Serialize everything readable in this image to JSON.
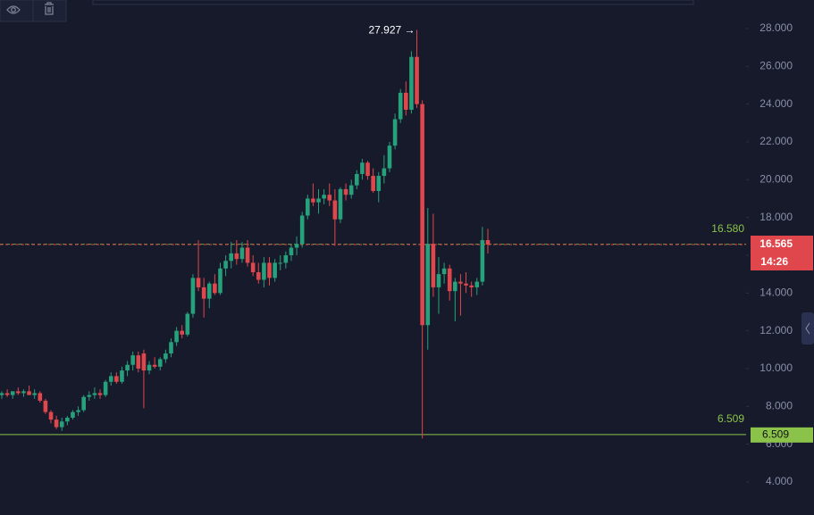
{
  "chart_data": {
    "type": "candlestick",
    "ylim": [
      2.25,
      29.51
    ],
    "yticks": [
      {
        "value": 4,
        "label": "4.000"
      },
      {
        "value": 6,
        "label": "6.000"
      },
      {
        "value": 8,
        "label": "8.000"
      },
      {
        "value": 10,
        "label": "10.000"
      },
      {
        "value": 12,
        "label": "12.000"
      },
      {
        "value": 14,
        "label": "14.000"
      },
      {
        "value": 16,
        "label": "16.000"
      },
      {
        "value": 18,
        "label": "18.000"
      },
      {
        "value": 20,
        "label": "20.000"
      },
      {
        "value": 22,
        "label": "22.000"
      },
      {
        "value": 24,
        "label": "24.000"
      },
      {
        "value": 26,
        "label": "26.000"
      },
      {
        "value": 28,
        "label": "28.000"
      }
    ],
    "up_color": "#26a17b",
    "down_color": "#e0474c",
    "open": [
      8.6,
      8.7,
      8.6,
      8.8,
      8.7,
      8.8,
      8.6,
      8.7,
      8.3,
      7.7,
      7.3,
      6.9,
      7.2,
      7.4,
      7.7,
      7.8,
      8.5,
      8.6,
      8.7,
      8.6,
      9.3,
      9.6,
      9.3,
      9.9,
      10.2,
      10.7,
      10.8,
      9.9,
      10.2,
      10.1,
      10.5,
      10.8,
      11.4,
      12.0,
      11.8,
      12.9,
      14.8,
      14.3,
      13.7,
      14.5,
      14.0,
      15.3,
      15.7,
      16.1,
      15.8,
      16.4,
      15.6,
      15.1,
      14.7,
      15.6,
      14.8,
      15.6,
      15.6,
      16.0,
      16.4,
      16.6,
      18.1,
      19.0,
      18.8,
      19.0,
      19.2,
      18.9,
      17.9,
      19.5,
      19.2,
      19.7,
      20.3,
      20.9,
      20.2,
      19.4,
      20.2,
      20.6,
      21.8,
      23.2,
      24.6,
      23.7,
      26.5,
      24.0,
      12.3,
      16.6,
      14.3,
      15.0,
      15.3,
      14.1,
      14.6,
      14.5,
      14.4,
      14.3,
      14.6,
      16.8
    ],
    "high": [
      8.8,
      8.9,
      8.8,
      9.0,
      8.9,
      9.1,
      8.9,
      8.8,
      8.4,
      7.8,
      7.5,
      7.4,
      7.5,
      7.8,
      8.0,
      8.6,
      8.8,
      9.0,
      8.9,
      9.4,
      9.8,
      9.8,
      10.1,
      10.4,
      10.9,
      10.9,
      11.0,
      10.4,
      10.6,
      10.6,
      11.0,
      11.6,
      12.2,
      12.3,
      13.0,
      15.0,
      16.8,
      14.8,
      14.6,
      15.0,
      15.6,
      16.0,
      16.7,
      16.8,
      16.7,
      16.8,
      16.0,
      15.6,
      15.9,
      15.9,
      15.8,
      16.0,
      16.2,
      16.6,
      17.0,
      18.3,
      19.2,
      19.8,
      19.5,
      19.5,
      19.8,
      19.5,
      19.6,
      19.8,
      20.0,
      20.5,
      21.1,
      21.0,
      20.6,
      20.4,
      21.3,
      22.0,
      23.5,
      24.8,
      25.2,
      26.8,
      27.927,
      24.2,
      18.5,
      18.2,
      15.9,
      15.6,
      15.5,
      14.8,
      15.0,
      15.1,
      14.6,
      14.8,
      17.5,
      17.4
    ],
    "low": [
      8.4,
      8.5,
      8.4,
      8.6,
      8.5,
      8.6,
      8.4,
      8.2,
      7.6,
      7.1,
      6.8,
      6.7,
      7.0,
      7.3,
      7.5,
      7.7,
      8.3,
      8.4,
      8.4,
      8.5,
      9.1,
      9.2,
      9.2,
      9.6,
      9.9,
      9.8,
      7.9,
      9.7,
      10.0,
      9.9,
      10.3,
      10.6,
      11.2,
      11.6,
      11.7,
      12.7,
      14.1,
      12.7,
      13.2,
      13.9,
      13.9,
      14.9,
      15.3,
      15.5,
      15.6,
      15.4,
      14.9,
      14.5,
      14.3,
      14.4,
      14.6,
      15.2,
      15.3,
      15.7,
      16.0,
      16.4,
      17.9,
      18.6,
      18.2,
      18.7,
      18.6,
      16.5,
      17.7,
      18.9,
      19.0,
      19.5,
      20.0,
      20.0,
      19.3,
      18.8,
      19.8,
      20.4,
      21.6,
      23.0,
      23.4,
      23.5,
      23.8,
      6.3,
      11.0,
      13.8,
      12.9,
      14.5,
      13.6,
      12.5,
      12.8,
      14.0,
      13.8,
      13.9,
      14.4,
      16.1
    ],
    "close": [
      8.7,
      8.6,
      8.8,
      8.7,
      8.8,
      8.6,
      8.7,
      8.3,
      7.7,
      7.3,
      6.9,
      7.2,
      7.4,
      7.7,
      7.8,
      8.5,
      8.6,
      8.7,
      8.6,
      9.3,
      9.6,
      9.3,
      9.9,
      10.2,
      10.7,
      10.0,
      9.9,
      10.2,
      10.1,
      10.5,
      10.8,
      11.4,
      12.0,
      11.8,
      12.9,
      14.8,
      14.3,
      13.7,
      14.5,
      14.0,
      15.3,
      15.7,
      16.1,
      15.8,
      16.4,
      15.6,
      15.1,
      14.7,
      15.6,
      14.8,
      15.6,
      15.6,
      16.0,
      16.4,
      16.6,
      18.1,
      19.0,
      18.8,
      19.0,
      19.2,
      18.9,
      17.9,
      19.5,
      19.2,
      19.7,
      20.3,
      20.9,
      20.2,
      19.4,
      20.2,
      20.6,
      21.8,
      23.2,
      24.6,
      23.7,
      26.5,
      24.0,
      12.3,
      16.6,
      14.3,
      15.0,
      15.3,
      14.1,
      14.6,
      14.5,
      14.4,
      14.3,
      14.6,
      16.8,
      16.565
    ],
    "high_marker": {
      "value": 27.927,
      "label": "27.927 →"
    },
    "price_lines": [
      {
        "value": 16.58,
        "label": "16.580",
        "color": "#8bc34a"
      },
      {
        "value": 6.509,
        "label": "6.509",
        "color": "#8bc34a"
      }
    ],
    "last_price": {
      "value": 16.565,
      "label": "16.565",
      "countdown": "14:26",
      "color": "#e0474c"
    }
  }
}
